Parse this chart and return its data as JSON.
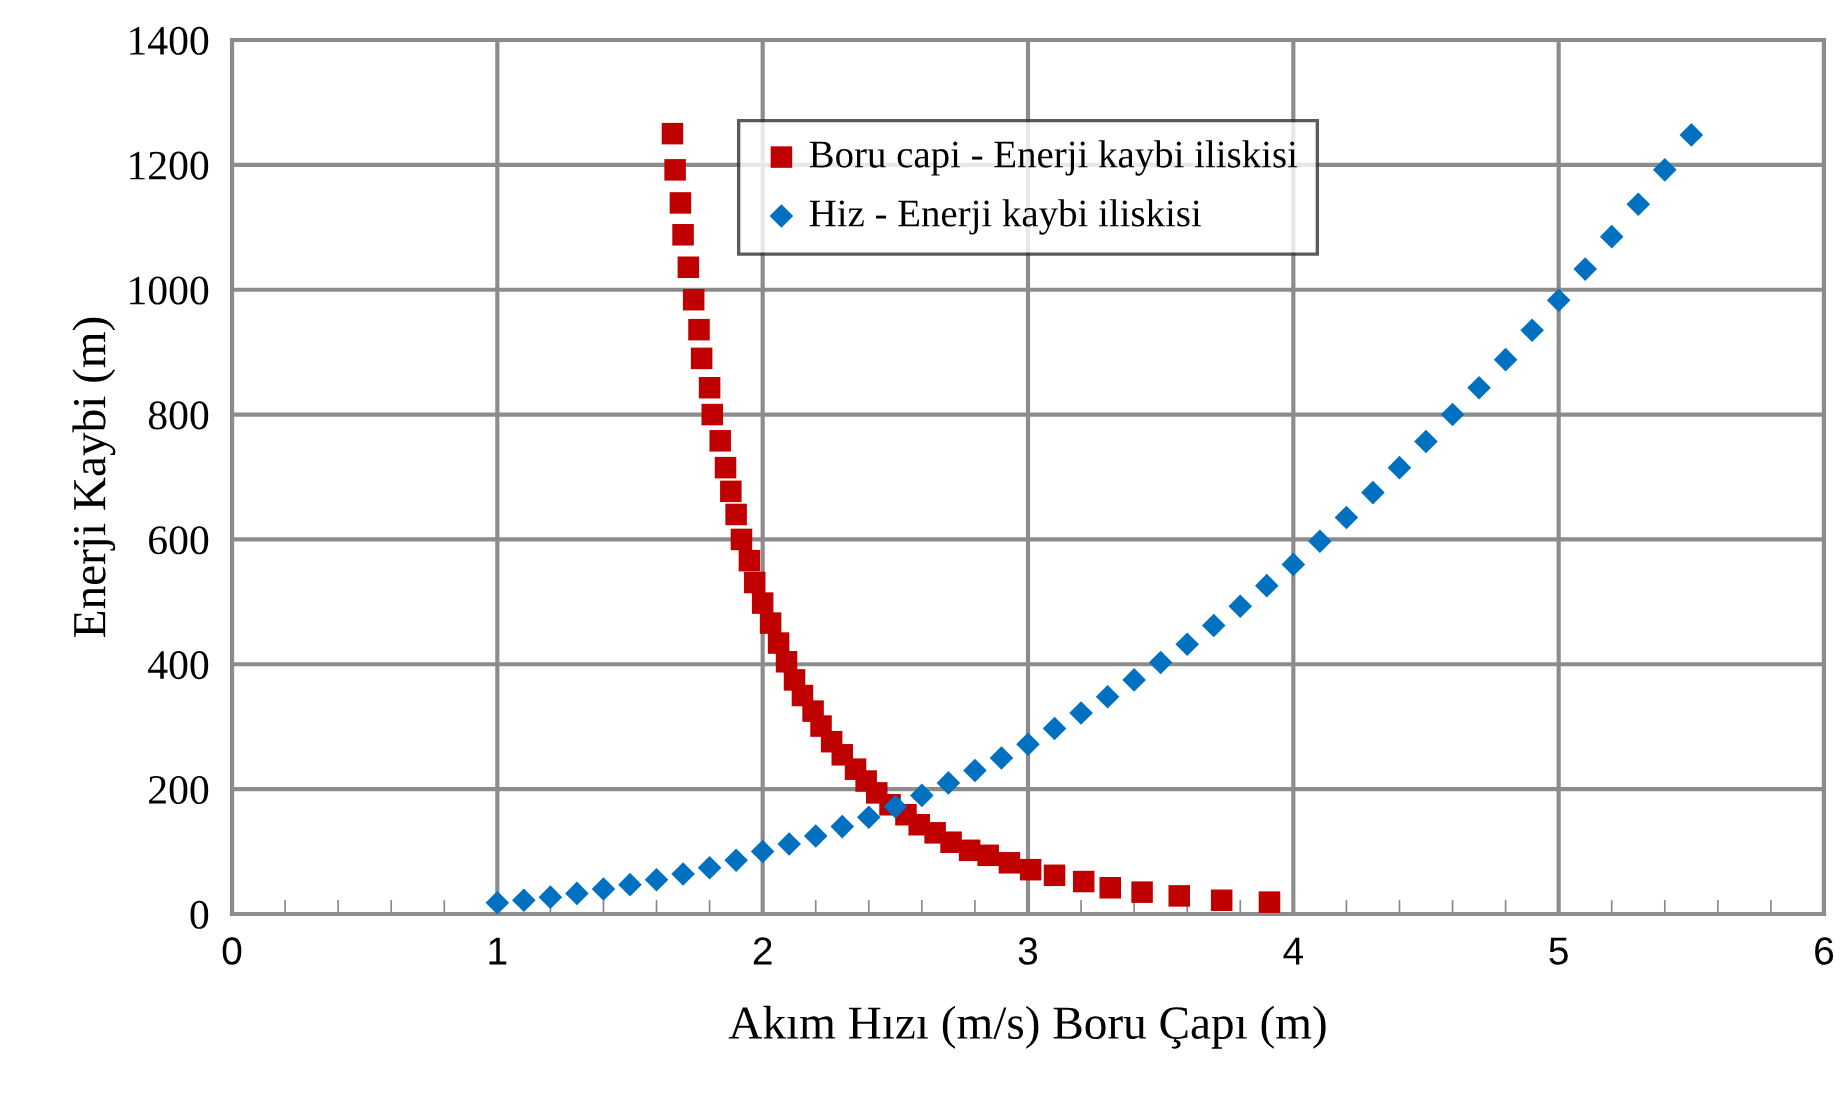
{
  "chart_data": {
    "type": "scatter",
    "xlabel": "Akım Hızı (m/s) Boru Çapı (m)",
    "ylabel": "Enerji Kaybi (m)",
    "xlim": [
      0,
      6
    ],
    "xticks": [
      0,
      1,
      2,
      3,
      4,
      5,
      6
    ],
    "ylim": [
      0,
      1400
    ],
    "yticks": [
      0,
      200,
      400,
      600,
      800,
      1000,
      1200,
      1400
    ],
    "grid": true,
    "legend": "top center",
    "series": [
      {
        "name": "Boru capi - Enerji kaybi iliskisi",
        "color": "#c00000",
        "marker": "square",
        "x": [
          1.66,
          1.67,
          1.69,
          1.7,
          1.72,
          1.74,
          1.76,
          1.77,
          1.8,
          1.81,
          1.84,
          1.86,
          1.88,
          1.9,
          1.92,
          1.95,
          1.97,
          2.0,
          2.03,
          2.06,
          2.09,
          2.12,
          2.15,
          2.19,
          2.22,
          2.26,
          2.3,
          2.35,
          2.39,
          2.43,
          2.48,
          2.54,
          2.59,
          2.65,
          2.71,
          2.78,
          2.85,
          2.93,
          3.01,
          3.1,
          3.21,
          3.31,
          3.43,
          3.57,
          3.73,
          3.91
        ],
        "values": [
          1250,
          1192,
          1139,
          1088,
          1036,
          984,
          936,
          890,
          843,
          800,
          758,
          715,
          677,
          640,
          600,
          566,
          531,
          498,
          466,
          434,
          404,
          375,
          350,
          325,
          301,
          276,
          255,
          232,
          213,
          194,
          175,
          159,
          143,
          130,
          115,
          102,
          94,
          82,
          71,
          62,
          52,
          42,
          35,
          29,
          22,
          19
        ]
      },
      {
        "name": "Hiz - Enerji kaybi iliskisi",
        "color": "#0070c0",
        "marker": "diamond",
        "x": [
          1.0,
          1.1,
          1.2,
          1.3,
          1.4,
          1.5,
          1.6,
          1.7,
          1.8,
          1.9,
          2.0,
          2.1,
          2.2,
          2.3,
          2.4,
          2.5,
          2.6,
          2.7,
          2.8,
          2.9,
          3.0,
          3.1,
          3.2,
          3.3,
          3.4,
          3.5,
          3.6,
          3.7,
          3.8,
          3.9,
          4.0,
          4.1,
          4.2,
          4.3,
          4.4,
          4.5,
          4.6,
          4.7,
          4.8,
          4.9,
          5.0,
          5.1,
          5.2,
          5.3,
          5.4,
          5.5
        ],
        "values": [
          18,
          22,
          27,
          33,
          40,
          47,
          55,
          64,
          74,
          86,
          100,
          112,
          125,
          140,
          155,
          172,
          190,
          210,
          230,
          250,
          272,
          297,
          322,
          348,
          375,
          403,
          432,
          462,
          493,
          526,
          560,
          597,
          635,
          675,
          715,
          757,
          800,
          843,
          888,
          935,
          983,
          1033,
          1085,
          1137,
          1192,
          1248
        ]
      }
    ]
  }
}
